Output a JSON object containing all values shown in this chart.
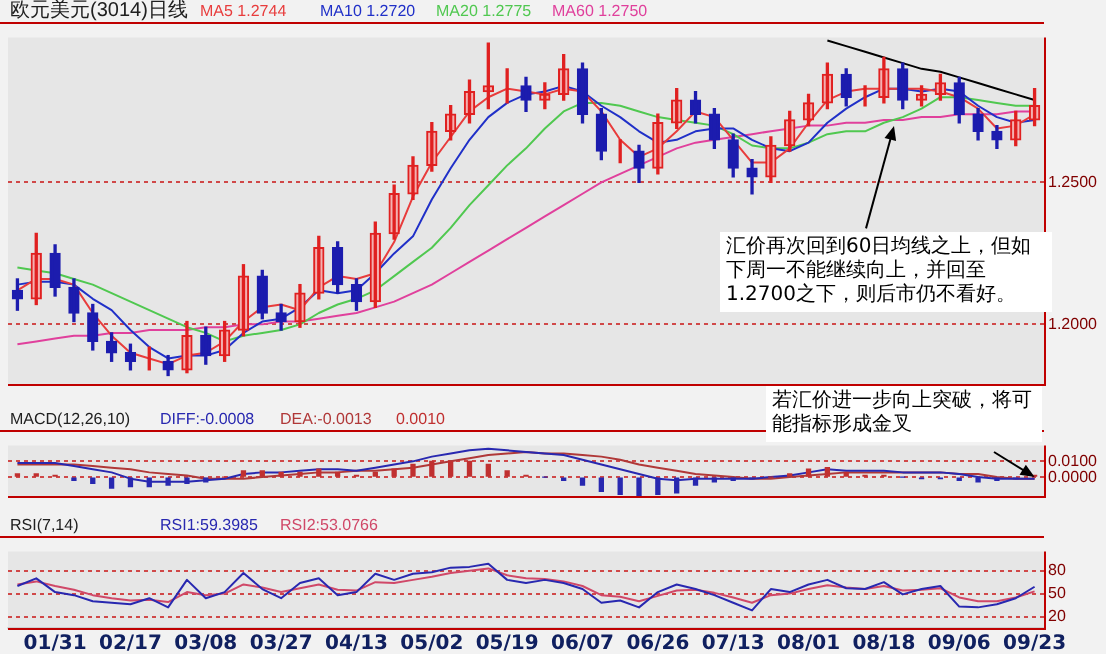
{
  "chart_data": [
    {
      "type": "candlestick",
      "title": "欧元美元(3014)日线",
      "categories": [
        null,
        null,
        "01/31",
        null,
        null,
        null,
        "02/17",
        null,
        null,
        null,
        "03/08",
        null,
        null,
        null,
        "03/27",
        null,
        null,
        null,
        "04/13",
        null,
        null,
        null,
        "05/02",
        null,
        null,
        null,
        "05/19",
        null,
        null,
        null,
        "06/07",
        null,
        null,
        null,
        "06/26",
        null,
        null,
        null,
        "07/13",
        null,
        null,
        null,
        "08/01",
        null,
        null,
        null,
        "08/18",
        null,
        null,
        null,
        "09/06",
        null,
        null,
        null,
        "09/23"
      ],
      "ohlc": [
        [
          1.212,
          1.216,
          1.205,
          1.209
        ],
        [
          1.209,
          1.232,
          1.207,
          1.225
        ],
        [
          1.225,
          1.228,
          1.21,
          1.213
        ],
        [
          1.213,
          1.216,
          1.201,
          1.204
        ],
        [
          1.204,
          1.207,
          1.191,
          1.194
        ],
        [
          1.194,
          1.197,
          1.187,
          1.19
        ],
        [
          1.19,
          1.193,
          1.184,
          1.187
        ],
        [
          1.187,
          1.192,
          1.184,
          1.187
        ],
        [
          1.187,
          1.189,
          1.182,
          1.184
        ],
        [
          1.184,
          1.201,
          1.183,
          1.196
        ],
        [
          1.196,
          1.199,
          1.186,
          1.189
        ],
        [
          1.189,
          1.201,
          1.187,
          1.198
        ],
        [
          1.198,
          1.221,
          1.196,
          1.217
        ],
        [
          1.217,
          1.219,
          1.202,
          1.204
        ],
        [
          1.204,
          1.207,
          1.198,
          1.201
        ],
        [
          1.201,
          1.214,
          1.199,
          1.211
        ],
        [
          1.211,
          1.231,
          1.209,
          1.227
        ],
        [
          1.227,
          1.229,
          1.211,
          1.214
        ],
        [
          1.214,
          1.216,
          1.205,
          1.208
        ],
        [
          1.208,
          1.236,
          1.206,
          1.232
        ],
        [
          1.232,
          1.249,
          1.23,
          1.246
        ],
        [
          1.246,
          1.259,
          1.244,
          1.256
        ],
        [
          1.256,
          1.271,
          1.254,
          1.268
        ],
        [
          1.268,
          1.277,
          1.265,
          1.274
        ],
        [
          1.274,
          1.286,
          1.271,
          1.282
        ],
        [
          1.282,
          1.299,
          1.276,
          1.284
        ],
        [
          1.284,
          1.29,
          1.278,
          1.284
        ],
        [
          1.284,
          1.287,
          1.275,
          1.279
        ],
        [
          1.279,
          1.285,
          1.276,
          1.281
        ],
        [
          1.281,
          1.295,
          1.279,
          1.29
        ],
        [
          1.29,
          1.292,
          1.271,
          1.274
        ],
        [
          1.274,
          1.276,
          1.258,
          1.261
        ],
        [
          1.261,
          1.265,
          1.257,
          1.261
        ],
        [
          1.261,
          1.263,
          1.25,
          1.255
        ],
        [
          1.255,
          1.274,
          1.253,
          1.271
        ],
        [
          1.271,
          1.283,
          1.269,
          1.279
        ],
        [
          1.279,
          1.282,
          1.271,
          1.274
        ],
        [
          1.274,
          1.276,
          1.262,
          1.265
        ],
        [
          1.265,
          1.267,
          1.252,
          1.255
        ],
        [
          1.255,
          1.258,
          1.246,
          1.252
        ],
        [
          1.252,
          1.266,
          1.25,
          1.263
        ],
        [
          1.263,
          1.275,
          1.261,
          1.272
        ],
        [
          1.272,
          1.281,
          1.27,
          1.278
        ],
        [
          1.278,
          1.292,
          1.276,
          1.288
        ],
        [
          1.288,
          1.29,
          1.277,
          1.28
        ],
        [
          1.28,
          1.284,
          1.277,
          1.28
        ],
        [
          1.28,
          1.294,
          1.278,
          1.29
        ],
        [
          1.29,
          1.292,
          1.276,
          1.279
        ],
        [
          1.279,
          1.284,
          1.277,
          1.281
        ],
        [
          1.281,
          1.288,
          1.279,
          1.285
        ],
        [
          1.285,
          1.287,
          1.271,
          1.274
        ],
        [
          1.274,
          1.276,
          1.265,
          1.268
        ],
        [
          1.268,
          1.27,
          1.262,
          1.265
        ],
        [
          1.265,
          1.275,
          1.263,
          1.272
        ],
        [
          1.272,
          1.283,
          1.27,
          1.277
        ]
      ],
      "series": [
        {
          "type": "line",
          "name": "MA5 1.2744",
          "color": "#e83c3c",
          "values": [
            1.212,
            1.216,
            1.216,
            1.214,
            1.204,
            1.196,
            1.19,
            1.188,
            1.186,
            1.189,
            1.19,
            1.194,
            1.201,
            1.206,
            1.207,
            1.205,
            1.213,
            1.217,
            1.216,
            1.218,
            1.229,
            1.245,
            1.257,
            1.266,
            1.275,
            1.28,
            1.283,
            1.282,
            1.281,
            1.283,
            1.282,
            1.275,
            1.265,
            1.259,
            1.262,
            1.268,
            1.275,
            1.273,
            1.265,
            1.257,
            1.257,
            1.262,
            1.271,
            1.279,
            1.282,
            1.283,
            1.283,
            1.283,
            1.283,
            1.282,
            1.28,
            1.276,
            1.269,
            1.27,
            1.274
          ]
        },
        {
          "type": "line",
          "name": "MA10 1.2720",
          "color": "#2030c8",
          "values": [
            1.214,
            1.215,
            1.215,
            1.214,
            1.209,
            1.205,
            1.198,
            1.192,
            1.188,
            1.189,
            1.189,
            1.191,
            1.197,
            1.201,
            1.202,
            1.206,
            1.212,
            1.211,
            1.212,
            1.218,
            1.225,
            1.231,
            1.244,
            1.255,
            1.265,
            1.273,
            1.278,
            1.281,
            1.282,
            1.284,
            1.282,
            1.277,
            1.273,
            1.268,
            1.264,
            1.265,
            1.268,
            1.269,
            1.269,
            1.265,
            1.262,
            1.261,
            1.264,
            1.271,
            1.276,
            1.28,
            1.283,
            1.283,
            1.282,
            1.283,
            1.282,
            1.277,
            1.273,
            1.271,
            1.272
          ]
        },
        {
          "type": "line",
          "name": "MA20 1.2775",
          "color": "#50c850",
          "values": [
            1.22,
            1.219,
            1.218,
            1.216,
            1.214,
            1.211,
            1.208,
            1.205,
            1.202,
            1.199,
            1.197,
            1.194,
            1.196,
            1.197,
            1.198,
            1.2,
            1.204,
            1.207,
            1.209,
            1.212,
            1.217,
            1.222,
            1.227,
            1.234,
            1.242,
            1.249,
            1.256,
            1.262,
            1.269,
            1.275,
            1.278,
            1.278,
            1.277,
            1.275,
            1.273,
            1.272,
            1.271,
            1.27,
            1.267,
            1.263,
            1.262,
            1.262,
            1.264,
            1.267,
            1.268,
            1.268,
            1.271,
            1.273,
            1.276,
            1.28,
            1.28,
            1.279,
            1.278,
            1.277,
            1.277
          ]
        },
        {
          "type": "line",
          "name": "MA60 1.2750",
          "color": "#e0409c",
          "values": [
            1.193,
            1.194,
            1.195,
            1.196,
            1.196,
            1.197,
            1.197,
            1.198,
            1.198,
            1.198,
            1.199,
            1.199,
            1.2,
            1.2,
            1.201,
            1.201,
            1.202,
            1.203,
            1.204,
            1.206,
            1.208,
            1.211,
            1.214,
            1.218,
            1.222,
            1.226,
            1.23,
            1.234,
            1.238,
            1.242,
            1.246,
            1.25,
            1.253,
            1.256,
            1.259,
            1.262,
            1.264,
            1.265,
            1.266,
            1.267,
            1.268,
            1.269,
            1.27,
            1.27,
            1.271,
            1.271,
            1.272,
            1.272,
            1.273,
            1.273,
            1.274,
            1.274,
            1.274,
            1.275,
            1.275
          ]
        },
        {
          "type": "line",
          "color": "#000000",
          "values": [
            null,
            null,
            null,
            null,
            null,
            null,
            null,
            null,
            null,
            null,
            null,
            null,
            null,
            null,
            null,
            null,
            null,
            null,
            null,
            null,
            null,
            null,
            null,
            null,
            null,
            null,
            null,
            null,
            null,
            null,
            null,
            null,
            null,
            null,
            null,
            null,
            null,
            null,
            null,
            null,
            null,
            null,
            null,
            1.3,
            1.298,
            1.296,
            1.294,
            1.292,
            1.29,
            1.289,
            1.287,
            1.285,
            1.283,
            1.281,
            1.279
          ]
        }
      ],
      "ylim": [
        1.179,
        1.301
      ],
      "yticks": [
        {
          "value": 1.25,
          "label": "1.2500"
        },
        {
          "value": 1.2,
          "label": "1.2000"
        }
      ],
      "grid": "y",
      "legend": "top",
      "tick_labels": "y",
      "marker": "none",
      "annotations": [
        {
          "text": "汇价再次回到60日均线之上，但如下周一不能继续向上，并回至1.2700之下，则后市仍不看好。",
          "y": 1.27
        }
      ]
    },
    {
      "type": "bar",
      "title": "MACD(12,26,10)",
      "categories": [
        null,
        null,
        "01/31",
        null,
        null,
        null,
        "02/17",
        null,
        null,
        null,
        "03/08",
        null,
        null,
        null,
        "03/27",
        null,
        null,
        null,
        "04/13",
        null,
        null,
        null,
        "05/02",
        null,
        null,
        null,
        "05/19",
        null,
        null,
        null,
        "06/07",
        null,
        null,
        null,
        "06/26",
        null,
        null,
        null,
        "07/13",
        null,
        null,
        null,
        "08/01",
        null,
        null,
        null,
        "08/18",
        null,
        null,
        null,
        "09/06",
        null,
        null,
        null,
        "09/23"
      ],
      "series": [
        {
          "type": "line",
          "name": "DIFF:-0.0008",
          "color": "#2828b0",
          "values": [
            0.009,
            0.009,
            0.009,
            0.007,
            0.005,
            0.003,
            -0.001,
            -0.003,
            -0.003,
            -0.003,
            -0.002,
            -0.001,
            0.002,
            0.003,
            0.003,
            0.004,
            0.005,
            0.005,
            0.004,
            0.006,
            0.008,
            0.01,
            0.013,
            0.015,
            0.017,
            0.018,
            0.017,
            0.016,
            0.015,
            0.014,
            0.011,
            0.008,
            0.005,
            0.002,
            -0.001,
            -0.002,
            -0.001,
            -0.001,
            -0.001,
            -0.001,
            0,
            0.001,
            0.003,
            0.005,
            0.004,
            0.004,
            0.004,
            0.003,
            0.003,
            0.003,
            0.002,
            0,
            -0.001,
            -0.001,
            -0.001
          ]
        },
        {
          "type": "line",
          "name": "DEA:-0.0013",
          "color": "#b03838",
          "values": [
            0.008,
            0.008,
            0.008,
            0.008,
            0.007,
            0.006,
            0.005,
            0.003,
            0.002,
            0.001,
            -0.001,
            -0.001,
            -0.001,
            0,
            0.001,
            0.002,
            0.003,
            0.003,
            0.004,
            0.004,
            0.005,
            0.006,
            0.008,
            0.01,
            0.012,
            0.014,
            0.015,
            0.016,
            0.015,
            0.015,
            0.014,
            0.013,
            0.011,
            0.008,
            0.006,
            0.004,
            0.002,
            0.001,
            0,
            -0.001,
            -0.001,
            0,
            0.001,
            0.002,
            0.003,
            0.003,
            0.003,
            0.003,
            0.003,
            0.003,
            0.002,
            0.002,
            0,
            -0.001,
            -0.001
          ]
        },
        {
          "type": "bar",
          "name": "0.0010",
          "color": "#c03030",
          "colors": [
            "#c03030",
            "#c03030",
            "#c03030",
            "#2828b0",
            "#2828b0",
            "#2828b0",
            "#2828b0",
            "#2828b0",
            "#2828b0",
            "#2828b0",
            "#2828b0",
            "#c03030",
            "#c03030",
            "#c03030",
            "#c03030",
            "#c03030",
            "#c03030",
            "#c03030",
            "#c03030",
            "#c03030",
            "#c03030",
            "#c03030",
            "#c03030",
            "#c03030",
            "#c03030",
            "#c03030",
            "#c03030",
            "#c03030",
            "#2828b0",
            "#2828b0",
            "#2828b0",
            "#2828b0",
            "#2828b0",
            "#2828b0",
            "#2828b0",
            "#2828b0",
            "#2828b0",
            "#2828b0",
            "#2828b0",
            "#2828b0",
            "#c03030",
            "#c03030",
            "#c03030",
            "#c03030",
            "#c03030",
            "#c03030",
            "#c03030",
            "#2828b0",
            "#2828b0",
            "#2828b0",
            "#2828b0",
            "#2828b0",
            "#2828b0",
            "#2828b0",
            "#c03030"
          ],
          "values": [
            0.002,
            0.002,
            0.001,
            -0.002,
            -0.004,
            -0.007,
            -0.006,
            -0.006,
            -0.005,
            -0.004,
            -0.003,
            0,
            0.004,
            0.004,
            0.003,
            0.003,
            0.005,
            0.003,
            0.001,
            0.003,
            0.005,
            0.008,
            0.01,
            0.01,
            0.01,
            0.008,
            0.004,
            0.001,
            0,
            -0.002,
            -0.005,
            -0.009,
            -0.011,
            -0.012,
            -0.011,
            -0.01,
            -0.005,
            -0.003,
            -0.002,
            -0.001,
            0,
            0.002,
            0.005,
            0.006,
            0.003,
            0.001,
            0.001,
            0,
            -0.001,
            -0.001,
            -0.002,
            -0.003,
            -0.002,
            -0.001,
            0.001
          ]
        }
      ],
      "ylim": [
        -0.012,
        0.02
      ],
      "yticks": [
        {
          "value": 0.01,
          "label": "0.0100"
        },
        {
          "value": 0,
          "label": "0.0000"
        }
      ],
      "grid": "y",
      "legend": "top",
      "tick_labels": "y",
      "marker": "none",
      "annotations": [
        {
          "text": "若汇价进一步向上突破，将可能指标形成金叉",
          "x": "09/23",
          "y": 0
        }
      ]
    },
    {
      "type": "line",
      "title": "RSI(7,14)",
      "categories": [
        null,
        null,
        "01/31",
        null,
        null,
        null,
        "02/17",
        null,
        null,
        null,
        "03/08",
        null,
        null,
        null,
        "03/27",
        null,
        null,
        null,
        "04/13",
        null,
        null,
        null,
        "05/02",
        null,
        null,
        null,
        "05/19",
        null,
        null,
        null,
        "06/07",
        null,
        null,
        null,
        "06/26",
        null,
        null,
        null,
        "07/13",
        null,
        null,
        null,
        "08/01",
        null,
        null,
        null,
        "08/18",
        null,
        null,
        null,
        "09/06",
        null,
        null,
        null,
        "09/23"
      ],
      "series": [
        {
          "name": "RSI1:59.3985",
          "color": "#2828b0",
          "values": [
            60,
            70,
            52,
            48,
            40,
            38,
            36,
            44,
            32,
            68,
            44,
            52,
            77,
            56,
            44,
            64,
            70,
            48,
            52,
            76,
            68,
            76,
            78,
            84,
            85,
            89,
            68,
            64,
            68,
            64,
            56,
            38,
            41,
            32,
            52,
            62,
            56,
            48,
            38,
            28,
            56,
            52,
            62,
            68,
            57,
            56,
            65,
            49,
            56,
            60,
            33,
            32,
            36,
            44,
            59
          ]
        },
        {
          "name": "RSI2:53.0766",
          "color": "#d04868",
          "values": [
            62,
            66,
            60,
            55,
            48,
            44,
            41,
            42,
            39,
            52,
            48,
            50,
            62,
            58,
            52,
            57,
            62,
            55,
            54,
            65,
            64,
            68,
            72,
            77,
            80,
            83,
            74,
            70,
            69,
            66,
            60,
            48,
            46,
            40,
            47,
            54,
            55,
            51,
            45,
            38,
            48,
            50,
            56,
            61,
            58,
            56,
            60,
            54,
            55,
            57,
            45,
            40,
            40,
            45,
            53
          ]
        }
      ],
      "ylim": [
        5,
        105
      ],
      "yticks": [
        80,
        50,
        20
      ],
      "grid": "y",
      "legend": "top",
      "marker": "none"
    }
  ]
}
